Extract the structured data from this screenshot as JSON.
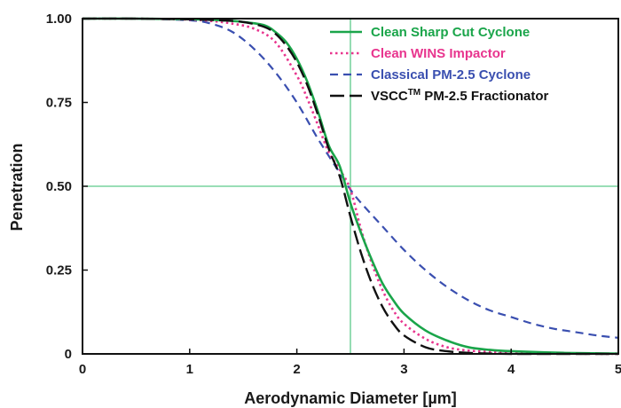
{
  "chart_data": {
    "type": "line",
    "xlabel": "Aerodynamic Diameter  [µm]",
    "ylabel": "Penetration",
    "xlim": [
      0,
      5
    ],
    "ylim": [
      0,
      1
    ],
    "x_ticks": [
      "0",
      "1",
      "2",
      "3",
      "4",
      "5"
    ],
    "y_ticks": [
      "0",
      "0.25",
      "0.50",
      "0.75",
      "1.00"
    ],
    "x_tick_values": [
      0,
      1,
      2,
      3,
      4,
      5
    ],
    "y_tick_values": [
      0,
      0.25,
      0.5,
      0.75,
      1.0
    ],
    "grid": false,
    "legend_position": "top-right",
    "reference_lines": {
      "x": 2.5,
      "y": 0.5,
      "color": "#5cc98a"
    },
    "series": [
      {
        "name": "Clean Sharp Cut Cyclone",
        "color": "#1aa54a",
        "dash": "solid",
        "x": [
          0,
          0.5,
          1.0,
          1.3,
          1.5,
          1.7,
          1.8,
          1.9,
          2.0,
          2.1,
          2.2,
          2.3,
          2.4,
          2.5,
          2.6,
          2.7,
          2.8,
          2.9,
          3.0,
          3.2,
          3.4,
          3.6,
          3.8,
          4.0,
          4.5,
          5.0
        ],
        "y": [
          1.0,
          1.0,
          0.998,
          0.995,
          0.99,
          0.98,
          0.96,
          0.93,
          0.88,
          0.81,
          0.72,
          0.62,
          0.56,
          0.45,
          0.36,
          0.28,
          0.21,
          0.16,
          0.12,
          0.07,
          0.04,
          0.02,
          0.012,
          0.008,
          0.003,
          0.001
        ]
      },
      {
        "name": "Clean WINS Impactor",
        "color": "#e8358e",
        "dash": "dotted",
        "x": [
          0,
          0.5,
          1.0,
          1.2,
          1.4,
          1.6,
          1.8,
          2.0,
          2.1,
          2.2,
          2.3,
          2.4,
          2.5,
          2.6,
          2.7,
          2.8,
          2.9,
          3.0,
          3.2,
          3.4,
          3.6,
          3.8,
          4.0,
          4.5,
          5.0
        ],
        "y": [
          1.0,
          1.0,
          0.997,
          0.993,
          0.985,
          0.97,
          0.93,
          0.83,
          0.76,
          0.68,
          0.6,
          0.55,
          0.49,
          0.37,
          0.27,
          0.19,
          0.13,
          0.09,
          0.045,
          0.02,
          0.01,
          0.006,
          0.003,
          0.001,
          0.0
        ]
      },
      {
        "name": "Classical PM-2.5 Cyclone",
        "color": "#3a4fb0",
        "dash": "dashed",
        "x": [
          0,
          0.5,
          1.0,
          1.2,
          1.4,
          1.6,
          1.8,
          2.0,
          2.2,
          2.4,
          2.5,
          2.6,
          2.8,
          3.0,
          3.2,
          3.4,
          3.6,
          3.8,
          4.0,
          4.2,
          4.4,
          4.6,
          4.8,
          5.0
        ],
        "y": [
          1.0,
          1.0,
          0.995,
          0.985,
          0.96,
          0.91,
          0.84,
          0.75,
          0.64,
          0.54,
          0.49,
          0.45,
          0.38,
          0.31,
          0.25,
          0.2,
          0.16,
          0.13,
          0.11,
          0.09,
          0.075,
          0.065,
          0.055,
          0.048
        ]
      },
      {
        "name": "VSCC",
        "superscript": "TM",
        "name_suffix": " PM-2.5 Fractionator",
        "color": "#111111",
        "dash": "long-dash",
        "x": [
          0,
          0.5,
          1.0,
          1.3,
          1.5,
          1.7,
          1.8,
          1.9,
          2.0,
          2.1,
          2.2,
          2.3,
          2.4,
          2.5,
          2.6,
          2.7,
          2.8,
          2.9,
          3.0,
          3.2,
          3.4,
          3.6,
          3.8,
          4.0,
          4.5,
          5.0
        ],
        "y": [
          1.0,
          1.0,
          0.998,
          0.995,
          0.99,
          0.975,
          0.955,
          0.92,
          0.87,
          0.8,
          0.71,
          0.61,
          0.53,
          0.41,
          0.3,
          0.21,
          0.14,
          0.09,
          0.055,
          0.02,
          0.008,
          0.003,
          0.001,
          0.0,
          0.0,
          0.0
        ]
      }
    ]
  }
}
